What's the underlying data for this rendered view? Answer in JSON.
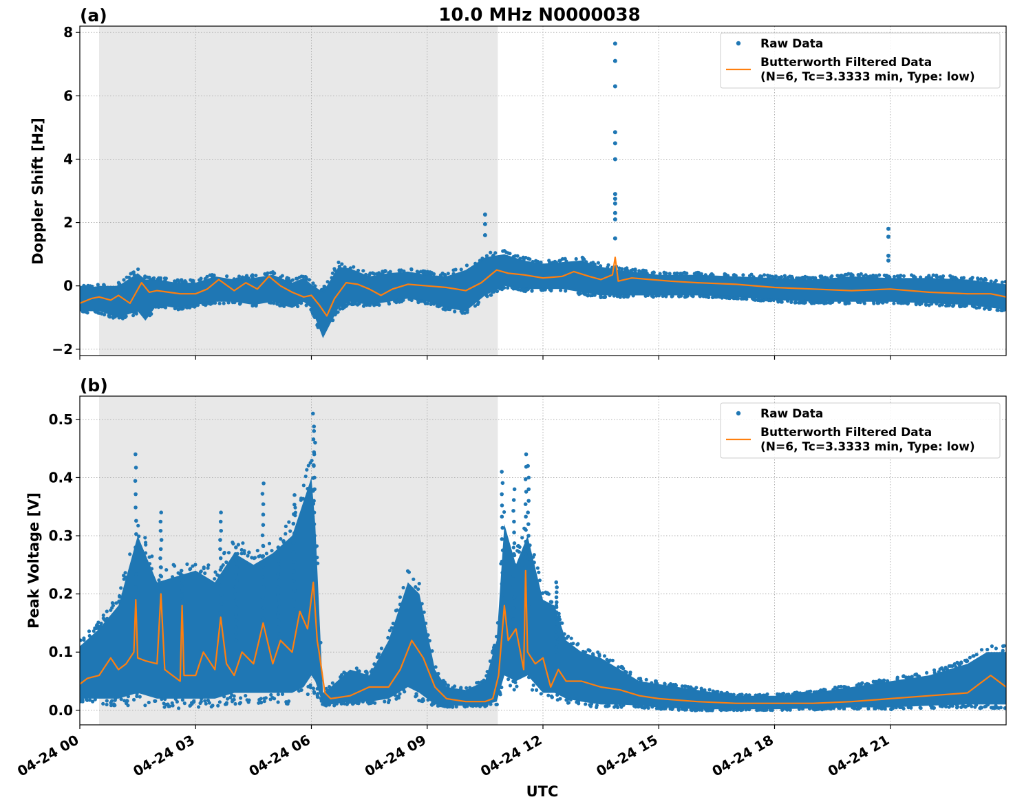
{
  "chart_data": {
    "type": "scatter",
    "title": "10.0 MHz N0000038",
    "xlabel": "UTC",
    "x_unit": "hours since 04-24 00 UTC",
    "xlim": [
      0,
      24
    ],
    "x_ticks": [
      0,
      3,
      6,
      9,
      12,
      15,
      18,
      21
    ],
    "x_tick_labels": [
      "04-24 00",
      "04-24 03",
      "04-24 06",
      "04-24 09",
      "04-24 12",
      "04-24 15",
      "04-24 18",
      "04-24 21"
    ],
    "shaded_interval": [
      0.5,
      10.83
    ],
    "shaded_color": "#e8e8e8",
    "raw_color": "#1f77b4",
    "filtered_color": "#ff7f0e",
    "legend": {
      "placement": "upper right",
      "raw_label": "Raw Data",
      "filtered_label_line1": "Butterworth Filtered Data",
      "filtered_label_line2": "(N=6, Tc=3.3333 min, Type: low)"
    },
    "panels": [
      {
        "tag": "(a)",
        "ylabel": "Doppler Shift [Hz]",
        "ylim": [
          -2.2,
          8.2
        ],
        "y_ticks": [
          -2,
          0,
          2,
          4,
          6,
          8
        ],
        "y_tick_labels": [
          "−2",
          "0",
          "2",
          "4",
          "6",
          "8"
        ],
        "series": [
          {
            "name": "Raw Data",
            "kind": "band",
            "x": [
              0,
              0.5,
              1.0,
              1.5,
              1.7,
              2.0,
              2.5,
              3.0,
              3.5,
              4.0,
              4.5,
              5.0,
              5.5,
              5.8,
              6.0,
              6.3,
              6.7,
              7.0,
              7.5,
              8.0,
              8.5,
              9.0,
              9.5,
              10.0,
              10.5,
              11.0,
              11.5,
              12.0,
              12.5,
              13.0,
              13.5,
              14.0,
              15.0,
              16.0,
              17.0,
              18.0,
              19.0,
              20.0,
              21.0,
              22.0,
              23.0,
              24.0
            ],
            "upper": [
              -0.1,
              0.0,
              0.0,
              0.4,
              0.2,
              0.2,
              0.1,
              0.1,
              0.3,
              0.2,
              0.25,
              0.35,
              0.1,
              0.25,
              0.05,
              -0.2,
              0.6,
              0.55,
              0.3,
              0.4,
              0.45,
              0.35,
              0.3,
              0.5,
              0.9,
              1.0,
              0.8,
              0.7,
              0.75,
              0.8,
              0.6,
              0.5,
              0.35,
              0.35,
              0.3,
              0.25,
              0.2,
              0.3,
              0.25,
              0.25,
              0.2,
              0.05
            ],
            "lower": [
              -0.8,
              -0.8,
              -1.0,
              -0.8,
              -1.1,
              -0.6,
              -0.7,
              -0.6,
              -0.5,
              -0.5,
              -0.6,
              -0.5,
              -0.7,
              -0.5,
              -0.7,
              -1.65,
              -0.7,
              -0.5,
              -0.6,
              -0.5,
              -0.4,
              -0.5,
              -0.7,
              -0.8,
              -0.3,
              0.0,
              -0.1,
              -0.1,
              -0.1,
              -0.2,
              -0.3,
              -0.3,
              -0.3,
              -0.3,
              -0.35,
              -0.45,
              -0.5,
              -0.5,
              -0.5,
              -0.55,
              -0.6,
              -0.75
            ]
          },
          {
            "name": "Raw Data outliers",
            "kind": "points",
            "x": [
              10.5,
              10.5,
              10.5,
              13.87,
              13.87,
              13.87,
              13.87,
              13.87,
              13.87,
              13.87,
              13.87,
              13.87,
              13.87,
              13.87,
              13.87,
              20.95,
              20.95,
              20.95,
              20.95
            ],
            "y": [
              2.25,
              1.95,
              1.6,
              7.65,
              7.1,
              6.3,
              4.85,
              4.5,
              4.0,
              2.9,
              2.75,
              2.6,
              2.3,
              2.1,
              1.5,
              1.8,
              1.55,
              0.95,
              0.8
            ]
          },
          {
            "name": "Butterworth Filtered Data",
            "kind": "line",
            "x": [
              0,
              0.3,
              0.5,
              0.8,
              1.0,
              1.3,
              1.6,
              1.8,
              2.0,
              2.3,
              2.6,
              3.0,
              3.3,
              3.6,
              4.0,
              4.3,
              4.6,
              4.9,
              5.2,
              5.5,
              5.8,
              6.0,
              6.2,
              6.4,
              6.6,
              6.9,
              7.2,
              7.5,
              7.8,
              8.1,
              8.5,
              9.0,
              9.5,
              10.0,
              10.4,
              10.8,
              11.1,
              11.5,
              12.0,
              12.5,
              12.8,
              13.2,
              13.5,
              13.8,
              13.87,
              13.95,
              14.3,
              14.8,
              15.3,
              16.0,
              17.0,
              18.0,
              19.0,
              20.0,
              21.0,
              22.0,
              23.0,
              23.6,
              24.0
            ],
            "y": [
              -0.55,
              -0.4,
              -0.35,
              -0.45,
              -0.3,
              -0.55,
              0.1,
              -0.2,
              -0.15,
              -0.2,
              -0.25,
              -0.25,
              -0.1,
              0.2,
              -0.15,
              0.1,
              -0.1,
              0.3,
              0.0,
              -0.2,
              -0.35,
              -0.3,
              -0.6,
              -0.95,
              -0.4,
              0.1,
              0.05,
              -0.1,
              -0.3,
              -0.1,
              0.05,
              0.0,
              -0.05,
              -0.15,
              0.1,
              0.5,
              0.4,
              0.35,
              0.25,
              0.3,
              0.45,
              0.3,
              0.2,
              0.35,
              0.9,
              0.15,
              0.25,
              0.2,
              0.15,
              0.1,
              0.05,
              -0.05,
              -0.1,
              -0.15,
              -0.1,
              -0.2,
              -0.25,
              -0.25,
              -0.35
            ]
          }
        ]
      },
      {
        "tag": "(b)",
        "ylabel": "Peak Voltage [V]",
        "ylim": [
          -0.025,
          0.54
        ],
        "y_ticks": [
          0.0,
          0.1,
          0.2,
          0.3,
          0.4,
          0.5
        ],
        "y_tick_labels": [
          "0.0",
          "0.1",
          "0.2",
          "0.3",
          "0.4",
          "0.5"
        ],
        "series": [
          {
            "name": "Raw Data",
            "kind": "band",
            "x": [
              0,
              0.5,
              1.0,
              1.5,
              2.0,
              2.5,
              3.0,
              3.5,
              4.0,
              4.5,
              5.0,
              5.5,
              5.8,
              6.0,
              6.1,
              6.3,
              6.5,
              7.0,
              7.5,
              8.0,
              8.5,
              8.8,
              9.2,
              9.5,
              10.0,
              10.5,
              10.8,
              11.0,
              11.3,
              11.6,
              12.0,
              12.3,
              12.6,
              13.0,
              13.5,
              14.0,
              14.5,
              15.0,
              16.0,
              17.0,
              18.0,
              19.0,
              20.0,
              21.0,
              22.0,
              23.0,
              23.5,
              24.0
            ],
            "upper": [
              0.11,
              0.14,
              0.18,
              0.3,
              0.22,
              0.23,
              0.24,
              0.22,
              0.27,
              0.25,
              0.27,
              0.3,
              0.36,
              0.4,
              0.32,
              0.03,
              0.04,
              0.07,
              0.06,
              0.12,
              0.22,
              0.2,
              0.07,
              0.04,
              0.035,
              0.05,
              0.12,
              0.32,
              0.25,
              0.3,
              0.19,
              0.18,
              0.12,
              0.1,
              0.09,
              0.07,
              0.05,
              0.045,
              0.035,
              0.025,
              0.025,
              0.03,
              0.04,
              0.05,
              0.06,
              0.08,
              0.1,
              0.1
            ],
            "lower": [
              0.02,
              0.02,
              0.02,
              0.03,
              0.02,
              0.02,
              0.02,
              0.02,
              0.03,
              0.03,
              0.03,
              0.03,
              0.04,
              0.06,
              0.05,
              0.01,
              0.01,
              0.015,
              0.015,
              0.02,
              0.04,
              0.03,
              0.01,
              0.008,
              0.008,
              0.01,
              0.015,
              0.06,
              0.05,
              0.06,
              0.03,
              0.03,
              0.02,
              0.015,
              0.01,
              0.01,
              0.008,
              0.005,
              0.002,
              0.002,
              0.002,
              0.003,
              0.005,
              0.005,
              0.008,
              0.01,
              0.01,
              0.01
            ]
          },
          {
            "name": "Raw Data spikes",
            "kind": "spikes",
            "x": [
              1.45,
              2.1,
              2.65,
              3.65,
              4.05,
              4.75,
              5.15,
              5.55,
              6.05,
              6.08,
              10.95,
              11.25,
              11.55,
              11.62,
              12.35
            ],
            "y": [
              0.44,
              0.34,
              0.24,
              0.34,
              0.28,
              0.39,
              0.28,
              0.37,
              0.51,
              0.48,
              0.41,
              0.38,
              0.44,
              0.42,
              0.22
            ],
            "base": [
              0.12,
              0.12,
              0.12,
              0.12,
              0.12,
              0.14,
              0.12,
              0.14,
              0.2,
              0.2,
              0.14,
              0.12,
              0.14,
              0.14,
              0.1
            ]
          },
          {
            "name": "Butterworth Filtered Data",
            "kind": "line",
            "x": [
              0,
              0.2,
              0.5,
              0.8,
              1.0,
              1.2,
              1.4,
              1.45,
              1.5,
              1.7,
              2.0,
              2.1,
              2.2,
              2.4,
              2.6,
              2.65,
              2.7,
              3.0,
              3.2,
              3.5,
              3.65,
              3.8,
              4.0,
              4.2,
              4.5,
              4.75,
              5.0,
              5.2,
              5.5,
              5.7,
              5.9,
              6.05,
              6.15,
              6.2,
              6.35,
              6.5,
              7.0,
              7.5,
              8.0,
              8.3,
              8.6,
              8.9,
              9.2,
              9.5,
              10.0,
              10.5,
              10.7,
              10.85,
              11.0,
              11.1,
              11.3,
              11.5,
              11.55,
              11.6,
              11.8,
              12.0,
              12.2,
              12.4,
              12.6,
              13.0,
              13.5,
              14.0,
              14.5,
              15.0,
              16.0,
              17.0,
              18.0,
              19.0,
              20.0,
              21.0,
              22.0,
              23.0,
              23.3,
              23.6,
              24.0
            ],
            "y": [
              0.045,
              0.055,
              0.06,
              0.09,
              0.07,
              0.08,
              0.1,
              0.19,
              0.09,
              0.085,
              0.08,
              0.2,
              0.07,
              0.06,
              0.05,
              0.18,
              0.06,
              0.06,
              0.1,
              0.07,
              0.16,
              0.08,
              0.06,
              0.1,
              0.08,
              0.15,
              0.08,
              0.12,
              0.1,
              0.17,
              0.14,
              0.22,
              0.12,
              0.1,
              0.03,
              0.02,
              0.025,
              0.04,
              0.04,
              0.07,
              0.12,
              0.09,
              0.04,
              0.02,
              0.015,
              0.015,
              0.02,
              0.06,
              0.18,
              0.12,
              0.14,
              0.07,
              0.24,
              0.1,
              0.08,
              0.09,
              0.04,
              0.07,
              0.05,
              0.05,
              0.04,
              0.035,
              0.025,
              0.02,
              0.015,
              0.012,
              0.012,
              0.012,
              0.015,
              0.02,
              0.025,
              0.03,
              0.045,
              0.06,
              0.04
            ]
          }
        ]
      }
    ]
  }
}
